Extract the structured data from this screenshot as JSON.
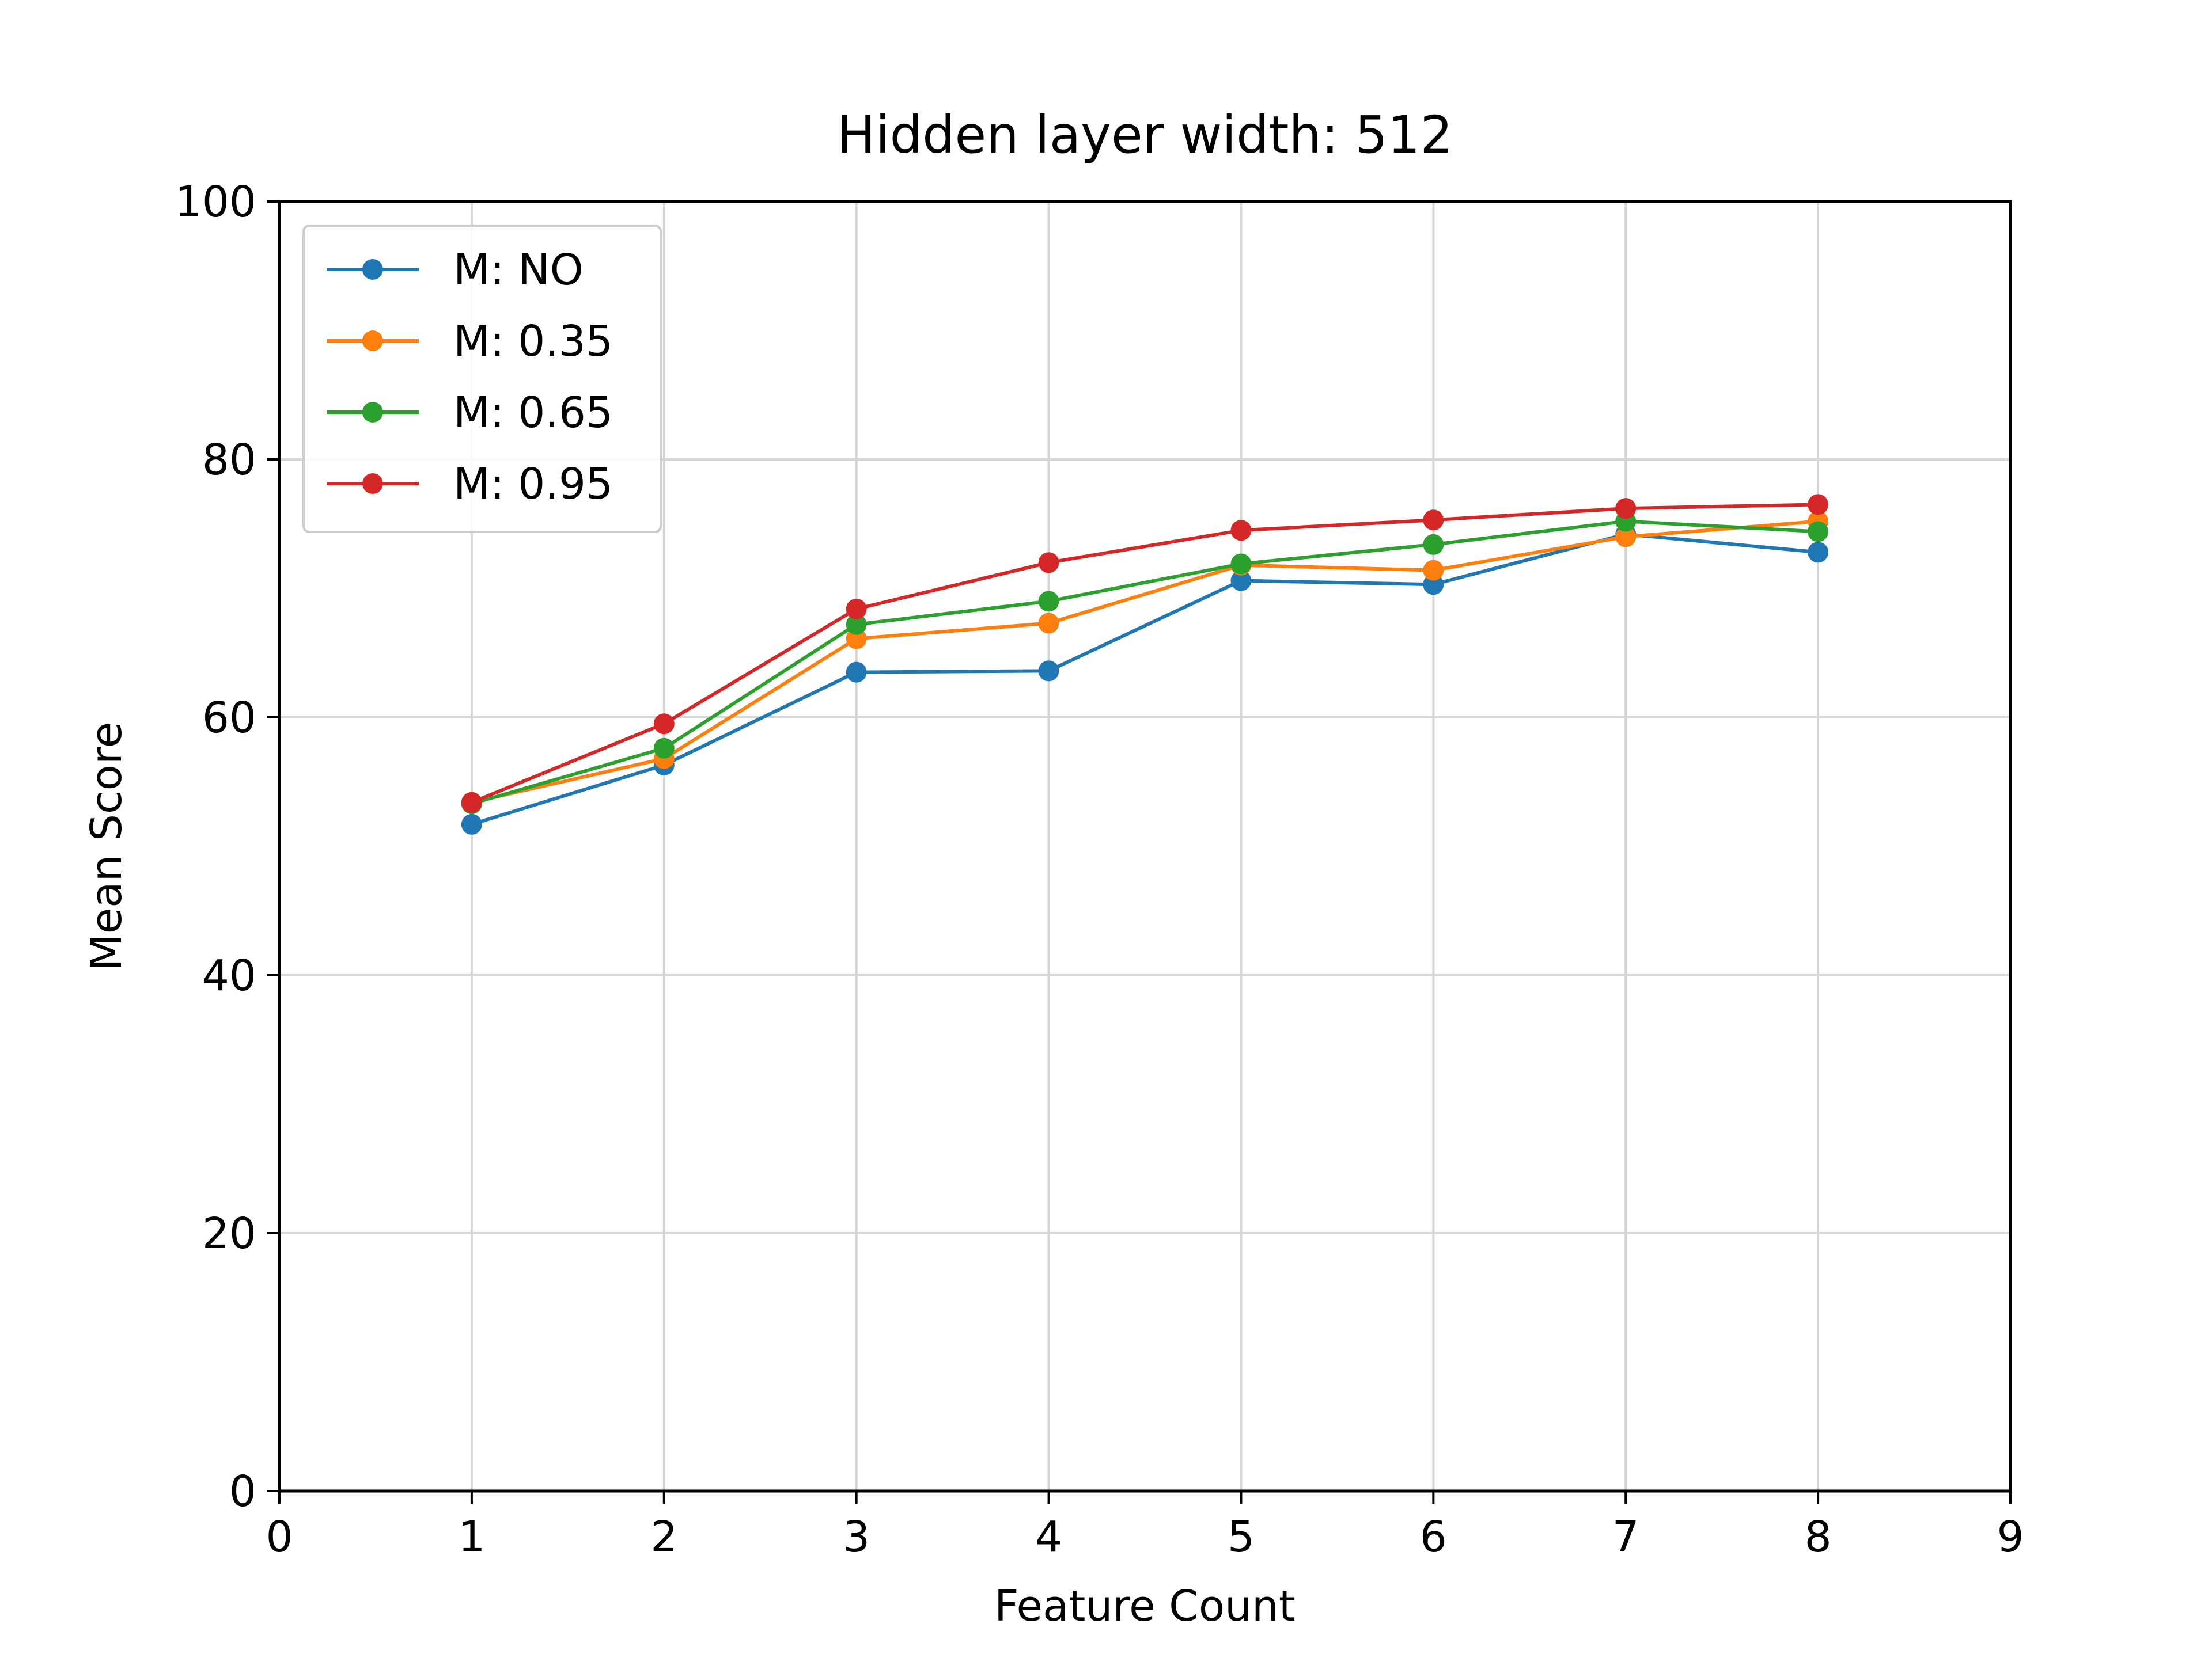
{
  "chart_data": {
    "type": "line",
    "title": "Hidden layer width: 512",
    "xlabel": "Feature Count",
    "ylabel": "Mean Score",
    "xlim": [
      0,
      9
    ],
    "ylim": [
      0,
      100
    ],
    "xticks": [
      "0",
      "1",
      "2",
      "3",
      "4",
      "5",
      "6",
      "7",
      "8",
      "9"
    ],
    "yticks": [
      "0",
      "20",
      "40",
      "60",
      "80",
      "100"
    ],
    "grid": true,
    "legend_position": "top-left",
    "x": [
      1,
      2,
      3,
      4,
      5,
      6,
      7,
      8
    ],
    "series": [
      {
        "name": "M: NO",
        "color": "#1f77b4",
        "values": [
          51.7,
          56.3,
          63.5,
          63.6,
          70.6,
          70.3,
          74.2,
          72.8
        ]
      },
      {
        "name": "M: 0.35",
        "color": "#ff7f0e",
        "values": [
          53.4,
          56.8,
          66.1,
          67.3,
          71.8,
          71.4,
          74.0,
          75.2
        ]
      },
      {
        "name": "M: 0.65",
        "color": "#2ca02c",
        "values": [
          53.3,
          57.6,
          67.2,
          69.0,
          71.9,
          73.4,
          75.2,
          74.4
        ]
      },
      {
        "name": "M: 0.95",
        "color": "#d62728",
        "values": [
          53.4,
          59.5,
          68.4,
          72.0,
          74.5,
          75.3,
          76.2,
          76.5
        ]
      }
    ]
  }
}
